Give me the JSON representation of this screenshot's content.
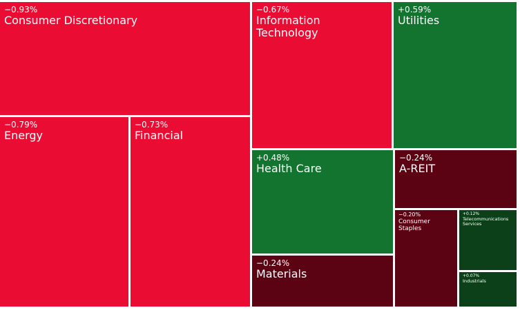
{
  "chart_data": {
    "type": "treemap",
    "categories": [
      "Consumer Discretionary",
      "Energy",
      "Financial",
      "Information Technology",
      "Utilities",
      "Health Care",
      "Materials",
      "A-REIT",
      "Consumer Staples",
      "Telecommunications Services",
      "Industrials"
    ],
    "values": [
      -0.93,
      -0.79,
      -0.73,
      -0.67,
      0.59,
      0.48,
      -0.24,
      -0.24,
      -0.2,
      0.12,
      0.07
    ],
    "value_labels": [
      "−0.93%",
      "−0.79%",
      "−0.73%",
      "−0.67%",
      "+0.59%",
      "+0.48%",
      "−0.24%",
      "−0.24%",
      "−0.20%",
      "+0.12%",
      "+0.07%"
    ],
    "colors": [
      "#eb0c33",
      "#eb0c33",
      "#eb0c33",
      "#eb0c33",
      "#13742f",
      "#13742f",
      "#5c0313",
      "#5c0313",
      "#5c0313",
      "#0b4018",
      "#0b4018"
    ]
  }
}
